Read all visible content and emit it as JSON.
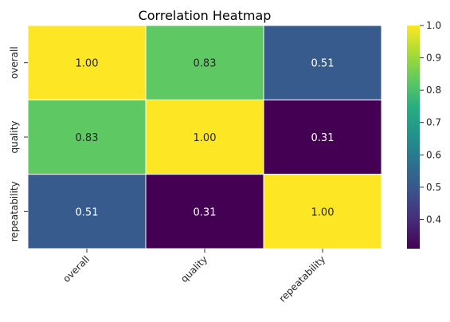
{
  "chart_data": {
    "type": "heatmap",
    "title": "Correlation Heatmap",
    "x_labels": [
      "overall",
      "quality",
      "repeatability"
    ],
    "y_labels": [
      "overall",
      "quality",
      "repeatability"
    ],
    "values": [
      [
        1.0,
        0.83,
        0.51
      ],
      [
        0.83,
        1.0,
        0.31
      ],
      [
        0.51,
        0.31,
        1.0
      ]
    ],
    "annotations": [
      [
        "1.00",
        "0.83",
        "0.51"
      ],
      [
        "0.83",
        "1.00",
        "0.31"
      ],
      [
        "0.51",
        "0.31",
        "1.00"
      ]
    ],
    "colormap": "viridis",
    "vmin": 0.31,
    "vmax": 1.0,
    "colorbar_ticks": [
      {
        "value": 0.4,
        "label": "0.4"
      },
      {
        "value": 0.5,
        "label": "0.5"
      },
      {
        "value": 0.6,
        "label": "0.6"
      },
      {
        "value": 0.7,
        "label": "0.7"
      },
      {
        "value": 0.8,
        "label": "0.8"
      },
      {
        "value": 0.9,
        "label": "0.9"
      },
      {
        "value": 1.0,
        "label": "1.0"
      }
    ],
    "colors": {
      "cell_border": "#ffffff",
      "text_dark": "#262626",
      "text_light": "#ffffff"
    }
  }
}
